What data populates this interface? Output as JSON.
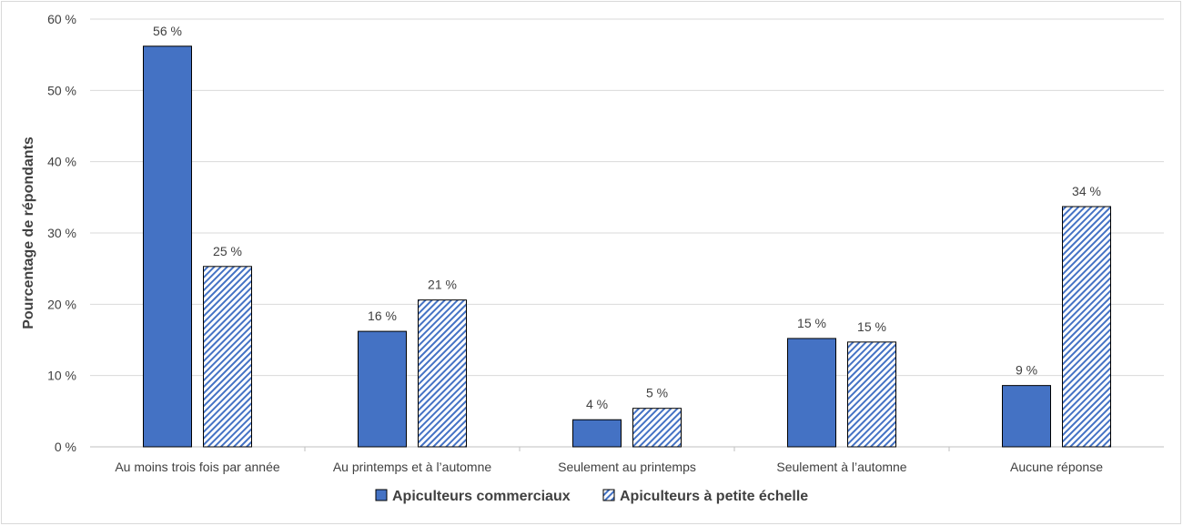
{
  "chart_data": {
    "type": "bar",
    "ylabel": "Pourcentage de répondants",
    "ylim": [
      0,
      60
    ],
    "yticks": [
      0,
      10,
      20,
      30,
      40,
      50,
      60
    ],
    "ytick_labels": [
      "0 %",
      "10 %",
      "20 %",
      "30 %",
      "40 %",
      "50 %",
      "60 %"
    ],
    "grid": true,
    "legend_position": "bottom",
    "categories": [
      "Au moins trois fois par année",
      "Au printemps et à l’automne",
      "Seulement au printemps",
      "Seulement à l’automne",
      "Aucune réponse"
    ],
    "series": [
      {
        "name": "Apiculteurs commerciaux",
        "values": [
          56.2,
          16.2,
          3.8,
          15.2,
          8.6
        ],
        "labels": [
          "56 %",
          "16 %",
          "4 %",
          "15 %",
          "9 %"
        ],
        "color": "#4472C4",
        "pattern": "solid"
      },
      {
        "name": "Apiculteurs à petite échelle",
        "values": [
          25.3,
          20.6,
          5.4,
          14.7,
          33.7
        ],
        "labels": [
          "25 %",
          "21 %",
          "5 %",
          "15 %",
          "34 %"
        ],
        "color": "#4472C4",
        "pattern": "diagonal-hatch"
      }
    ]
  }
}
